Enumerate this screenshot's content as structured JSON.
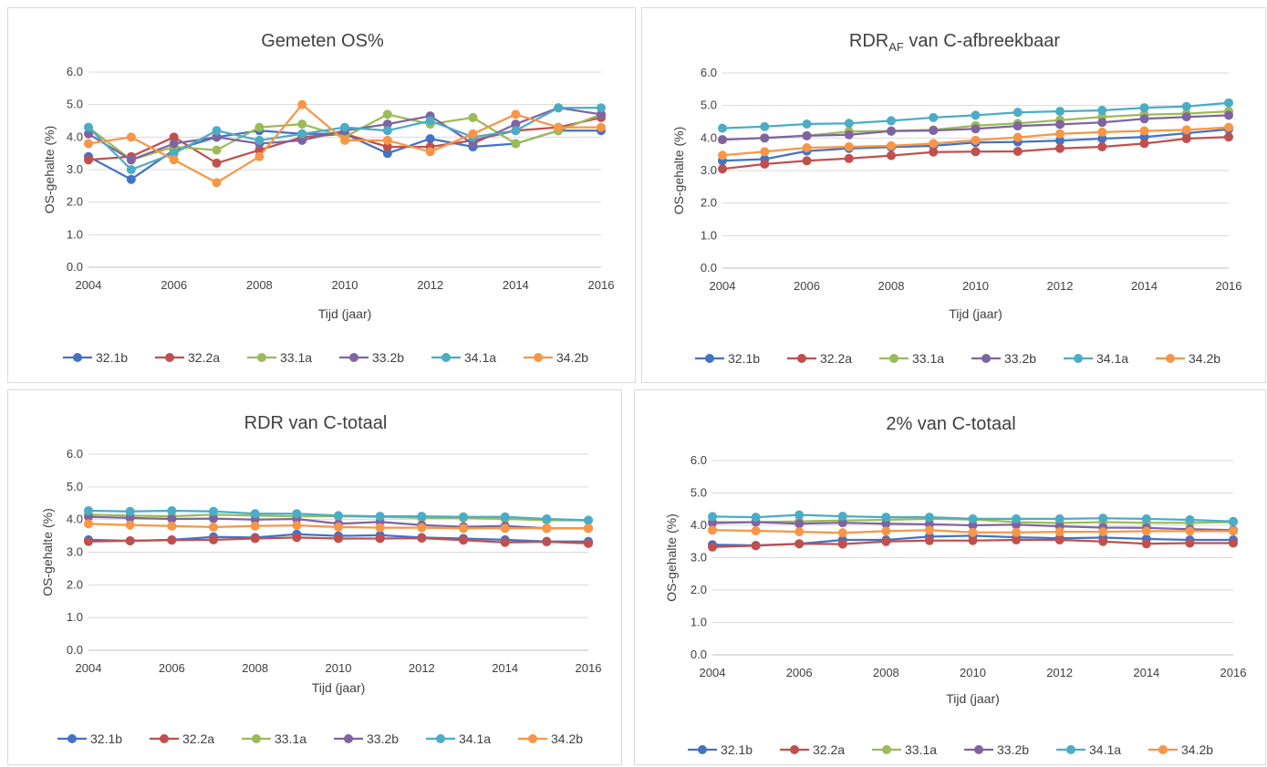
{
  "chart_data": [
    {
      "type": "line",
      "title": "Gemeten OS%",
      "title_main": "Gemeten OS%",
      "title_sub": "",
      "title_rest": "",
      "xlabel": "Tijd (jaar)",
      "ylabel": "OS-gehalte (%)",
      "x": [
        2004,
        2005,
        2006,
        2007,
        2008,
        2009,
        2010,
        2011,
        2012,
        2013,
        2014,
        2015,
        2016
      ],
      "xticks": [
        "2004",
        "2006",
        "2008",
        "2010",
        "2012",
        "2014",
        "2016"
      ],
      "yticks": [
        "0.0",
        "1.0",
        "2.0",
        "3.0",
        "4.0",
        "5.0",
        "6.0"
      ],
      "xlim": [
        2004,
        2016
      ],
      "ylim": [
        0,
        6
      ],
      "grid": "horizontal",
      "legend": "bottom",
      "series": [
        {
          "name": "32.1b",
          "color": "#4472c4",
          "values": [
            3.4,
            2.7,
            3.6,
            4.0,
            4.2,
            4.1,
            4.1,
            3.5,
            3.95,
            3.7,
            3.8,
            4.2,
            4.2
          ]
        },
        {
          "name": "32.2a",
          "color": "#c0504d",
          "values": [
            3.3,
            3.4,
            4.0,
            3.2,
            3.6,
            4.0,
            4.1,
            3.7,
            3.7,
            3.9,
            4.2,
            4.3,
            4.6
          ]
        },
        {
          "name": "33.1a",
          "color": "#9bbb59",
          "values": [
            4.3,
            3.3,
            3.7,
            3.6,
            4.3,
            4.4,
            4.0,
            4.7,
            4.4,
            4.6,
            3.8,
            4.2,
            4.7
          ]
        },
        {
          "name": "33.2b",
          "color": "#8064a2",
          "values": [
            4.1,
            3.3,
            3.8,
            4.0,
            3.8,
            3.9,
            4.2,
            4.4,
            4.65,
            3.8,
            4.4,
            4.9,
            4.7
          ]
        },
        {
          "name": "34.1a",
          "color": "#4bacc6",
          "values": [
            4.3,
            3.0,
            3.5,
            4.2,
            3.9,
            4.1,
            4.3,
            4.2,
            4.5,
            4.0,
            4.2,
            4.9,
            4.9
          ]
        },
        {
          "name": "34.2b",
          "color": "#f79646",
          "values": [
            3.8,
            4.0,
            3.3,
            2.6,
            3.4,
            5.0,
            3.9,
            3.9,
            3.55,
            4.1,
            4.7,
            4.3,
            4.3
          ]
        }
      ]
    },
    {
      "type": "line",
      "title": "RDRAF van C-afbreekbaar",
      "title_main": "RDR",
      "title_sub": "AF",
      "title_rest": " van C-afbreekbaar",
      "xlabel": "Tijd (jaar)",
      "ylabel": "OS-gehalte (%)",
      "x": [
        2004,
        2005,
        2006,
        2007,
        2008,
        2009,
        2010,
        2011,
        2012,
        2013,
        2014,
        2015,
        2016
      ],
      "xticks": [
        "2004",
        "2006",
        "2008",
        "2010",
        "2012",
        "2014",
        "2016"
      ],
      "yticks": [
        "0.0",
        "1.0",
        "2.0",
        "3.0",
        "4.0",
        "5.0",
        "6.0"
      ],
      "xlim": [
        2004,
        2016
      ],
      "ylim": [
        0,
        6
      ],
      "grid": "horizontal",
      "legend": "bottom",
      "series": [
        {
          "name": "32.1b",
          "color": "#4472c4",
          "values": [
            3.3,
            3.35,
            3.6,
            3.68,
            3.72,
            3.76,
            3.86,
            3.88,
            3.92,
            3.98,
            4.03,
            4.15,
            4.27
          ]
        },
        {
          "name": "32.2a",
          "color": "#c0504d",
          "values": [
            3.05,
            3.2,
            3.3,
            3.37,
            3.46,
            3.57,
            3.58,
            3.59,
            3.68,
            3.73,
            3.83,
            3.98,
            4.03
          ]
        },
        {
          "name": "33.1a",
          "color": "#9bbb59",
          "values": [
            3.95,
            4.0,
            4.07,
            4.2,
            4.22,
            4.25,
            4.38,
            4.45,
            4.55,
            4.65,
            4.72,
            4.75,
            4.82
          ]
        },
        {
          "name": "33.2b",
          "color": "#8064a2",
          "values": [
            3.95,
            4.0,
            4.07,
            4.1,
            4.21,
            4.23,
            4.28,
            4.37,
            4.42,
            4.48,
            4.59,
            4.65,
            4.7
          ]
        },
        {
          "name": "34.1a",
          "color": "#4bacc6",
          "values": [
            4.3,
            4.35,
            4.43,
            4.45,
            4.53,
            4.63,
            4.7,
            4.79,
            4.82,
            4.85,
            4.93,
            4.97,
            5.08
          ]
        },
        {
          "name": "34.2b",
          "color": "#f79646",
          "values": [
            3.47,
            3.58,
            3.7,
            3.73,
            3.76,
            3.83,
            3.93,
            4.02,
            4.13,
            4.18,
            4.22,
            4.25,
            4.33
          ]
        }
      ]
    },
    {
      "type": "line",
      "title": "RDR van C-totaal",
      "title_main": "RDR van C-totaal",
      "title_sub": "",
      "title_rest": "",
      "xlabel": "Tijd (jaar)",
      "ylabel": "OS-gehalte (%)",
      "x": [
        2004,
        2005,
        2006,
        2007,
        2008,
        2009,
        2010,
        2011,
        2012,
        2013,
        2014,
        2015,
        2016
      ],
      "xticks": [
        "2004",
        "2006",
        "2008",
        "2010",
        "2012",
        "2014",
        "2016"
      ],
      "yticks": [
        "0.0",
        "1.0",
        "2.0",
        "3.0",
        "4.0",
        "5.0",
        "6.0"
      ],
      "xlim": [
        2004,
        2016
      ],
      "ylim": [
        0,
        6
      ],
      "grid": "horizontal",
      "legend": "bottom",
      "series": [
        {
          "name": "32.1b",
          "color": "#4472c4",
          "values": [
            3.38,
            3.35,
            3.38,
            3.47,
            3.45,
            3.55,
            3.5,
            3.52,
            3.45,
            3.42,
            3.38,
            3.33,
            3.33
          ]
        },
        {
          "name": "32.2a",
          "color": "#c0504d",
          "values": [
            3.33,
            3.35,
            3.37,
            3.38,
            3.42,
            3.45,
            3.42,
            3.42,
            3.43,
            3.37,
            3.3,
            3.32,
            3.27
          ]
        },
        {
          "name": "33.1a",
          "color": "#9bbb59",
          "values": [
            4.15,
            4.12,
            4.1,
            4.15,
            4.12,
            4.1,
            4.1,
            4.08,
            4.05,
            4.05,
            4.02,
            3.98,
            3.97
          ]
        },
        {
          "name": "33.2b",
          "color": "#8064a2",
          "values": [
            4.08,
            4.05,
            4.02,
            4.03,
            4.0,
            4.02,
            3.87,
            3.93,
            3.83,
            3.78,
            3.8,
            3.73,
            3.73
          ]
        },
        {
          "name": "34.1a",
          "color": "#4bacc6",
          "values": [
            4.27,
            4.25,
            4.27,
            4.25,
            4.18,
            4.18,
            4.12,
            4.1,
            4.1,
            4.08,
            4.08,
            4.02,
            3.98
          ]
        },
        {
          "name": "34.2b",
          "color": "#f79646",
          "values": [
            3.87,
            3.83,
            3.8,
            3.77,
            3.8,
            3.82,
            3.77,
            3.75,
            3.75,
            3.73,
            3.73,
            3.73,
            3.73
          ]
        }
      ]
    },
    {
      "type": "line",
      "title": "2% van C-totaal",
      "title_main": "2% van C-totaal",
      "title_sub": "",
      "title_rest": "",
      "xlabel": "Tijd (jaar)",
      "ylabel": "OS-gehalte (%)",
      "x": [
        2004,
        2005,
        2006,
        2007,
        2008,
        2009,
        2010,
        2011,
        2012,
        2013,
        2014,
        2015,
        2016
      ],
      "xticks": [
        "2004",
        "2006",
        "2008",
        "2010",
        "2012",
        "2014",
        "2016"
      ],
      "yticks": [
        "0.0",
        "1.0",
        "2.0",
        "3.0",
        "4.0",
        "5.0",
        "6.0"
      ],
      "xlim": [
        2004,
        2016
      ],
      "ylim": [
        0,
        6
      ],
      "grid": "horizontal",
      "legend": "bottom",
      "series": [
        {
          "name": "32.1b",
          "color": "#4472c4",
          "values": [
            3.4,
            3.38,
            3.43,
            3.55,
            3.55,
            3.65,
            3.68,
            3.63,
            3.6,
            3.62,
            3.58,
            3.55,
            3.55
          ]
        },
        {
          "name": "32.2a",
          "color": "#c0504d",
          "values": [
            3.33,
            3.37,
            3.43,
            3.42,
            3.5,
            3.53,
            3.53,
            3.55,
            3.55,
            3.5,
            3.43,
            3.45,
            3.45
          ]
        },
        {
          "name": "33.1a",
          "color": "#9bbb59",
          "values": [
            4.1,
            4.1,
            4.12,
            4.15,
            4.17,
            4.2,
            4.18,
            4.1,
            4.07,
            4.1,
            4.08,
            4.08,
            4.1
          ]
        },
        {
          "name": "33.2b",
          "color": "#8064a2",
          "values": [
            4.07,
            4.1,
            4.05,
            4.08,
            4.05,
            4.03,
            4.0,
            4.02,
            3.97,
            3.93,
            3.92,
            3.88,
            3.85
          ]
        },
        {
          "name": "34.1a",
          "color": "#4bacc6",
          "values": [
            4.27,
            4.25,
            4.32,
            4.28,
            4.25,
            4.25,
            4.2,
            4.2,
            4.2,
            4.22,
            4.2,
            4.17,
            4.12
          ]
        },
        {
          "name": "34.2b",
          "color": "#f79646",
          "values": [
            3.85,
            3.83,
            3.8,
            3.77,
            3.82,
            3.85,
            3.78,
            3.78,
            3.8,
            3.8,
            3.82,
            3.82,
            3.82
          ]
        }
      ]
    }
  ]
}
